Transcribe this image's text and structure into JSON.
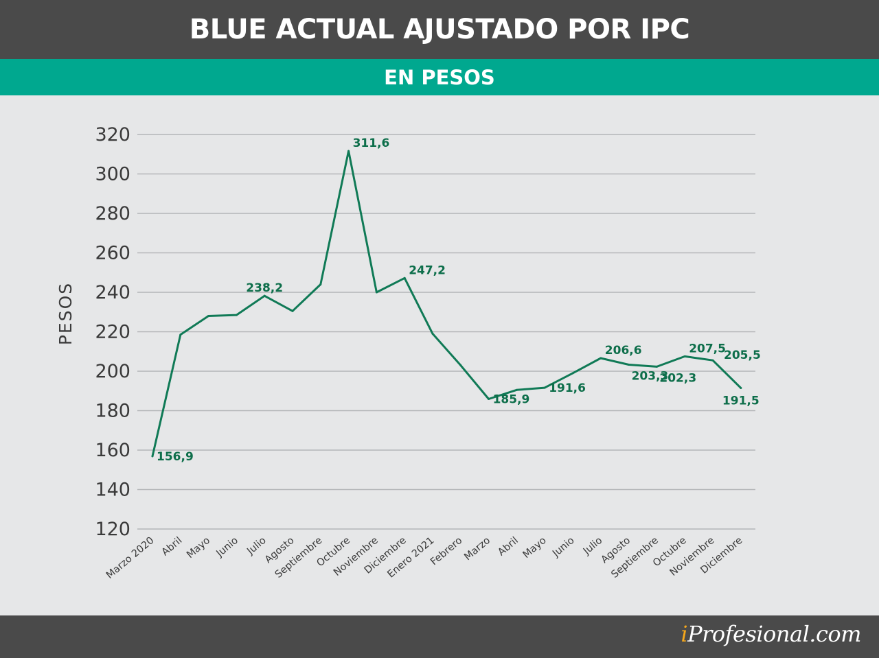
{
  "header": {
    "title": "BLUE ACTUAL AJUSTADO POR IPC"
  },
  "subheader": {
    "subtitle": "EN PESOS"
  },
  "footer": {
    "brand_prefix": "i",
    "brand_rest": "Profesional.com"
  },
  "colors": {
    "line": "#107a56",
    "label": "#0d6e4a",
    "grid": "#b4b6b8",
    "axis_text": "#3a3a3a"
  },
  "chart_data": {
    "type": "line",
    "ylabel": "PESOS",
    "ylim": [
      120,
      320
    ],
    "yticks": [
      120,
      140,
      160,
      180,
      200,
      220,
      240,
      260,
      280,
      300,
      320
    ],
    "grid": true,
    "categories": [
      "Marzo 2020",
      "Abril",
      "Mayo",
      "Junio",
      "Julio",
      "Agosto",
      "Septiembre",
      "Octubre",
      "Noviembre",
      "Diciembre",
      "Enero 2021",
      "Febrero",
      "Marzo",
      "Abril",
      "Mayo",
      "Junio",
      "Julio",
      "Agosto",
      "Septiembre",
      "Octubre",
      "Noviembre",
      "Diciembre"
    ],
    "series": [
      {
        "values": [
          156.9,
          218.5,
          228,
          228.5,
          238.2,
          230.5,
          244,
          311.6,
          240,
          247.2,
          219,
          203,
          185.9,
          190.5,
          191.6,
          199,
          206.6,
          203.3,
          202.3,
          207.5,
          205.5,
          191.5
        ]
      }
    ],
    "data_labels": [
      {
        "index": 0,
        "text": "156,9",
        "pos": "right"
      },
      {
        "index": 4,
        "text": "238,2",
        "pos": "above"
      },
      {
        "index": 7,
        "text": "311,6",
        "pos": "above-right"
      },
      {
        "index": 9,
        "text": "247,2",
        "pos": "above-right"
      },
      {
        "index": 12,
        "text": "185,9",
        "pos": "right"
      },
      {
        "index": 14,
        "text": "191,6",
        "pos": "right"
      },
      {
        "index": 16,
        "text": "206,6",
        "pos": "above-right"
      },
      {
        "index": 17,
        "text": "203,3",
        "pos": "below-right"
      },
      {
        "index": 18,
        "text": "202,3",
        "pos": "below-right"
      },
      {
        "index": 19,
        "text": "207,5",
        "pos": "above-right"
      },
      {
        "index": 20,
        "text": "205,5",
        "pos": "right"
      },
      {
        "index": 21,
        "text": "191,5",
        "pos": "below"
      }
    ]
  }
}
